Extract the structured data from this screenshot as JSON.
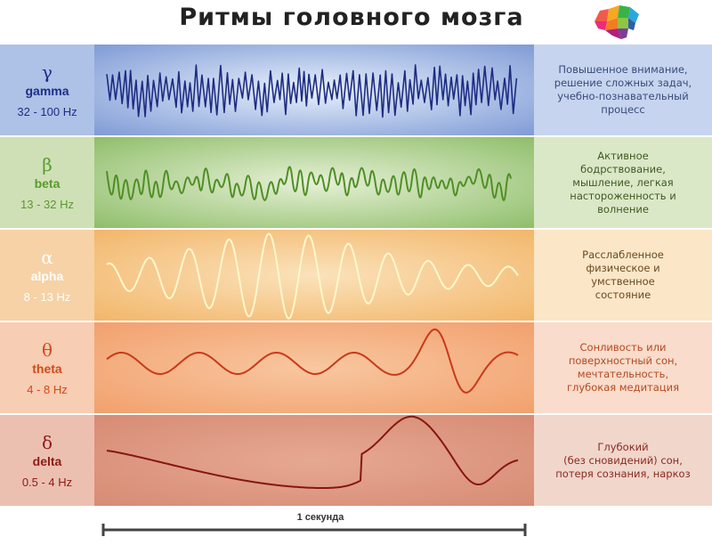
{
  "title": "Ритмы головного мозга",
  "scale_label": "1 секунда",
  "bands": [
    {
      "key": "gamma",
      "symbol": "γ",
      "name": "gamma",
      "freq": "32 - 100 Hz",
      "description": "Повышенное внимание,\nрешение сложных задач,\nучебно-познавательный\nпроцесс",
      "colors": {
        "left": "#aec1e6",
        "center_edge": "#7f9bd6",
        "center_mid": "#e8f0fb",
        "right": "#c6d4ef",
        "text": "#1d2f86",
        "desc": "#3a4a7a",
        "wave": "#1e2c82"
      }
    },
    {
      "key": "beta",
      "symbol": "β",
      "name": "beta",
      "freq": "13 - 32 Hz",
      "description": "Активное\nбодрствование,\nмышление, легкая\nнастороженность и\nволнение",
      "colors": {
        "left": "#cfe0b7",
        "center_edge": "#8fbe6a",
        "center_mid": "#e6f0d6",
        "right": "#dbe8c8",
        "text": "#5a9a2d",
        "desc": "#3f5a22",
        "wave": "#4f8f25"
      }
    },
    {
      "key": "alpha",
      "symbol": "α",
      "name": "alpha",
      "freq": "8 - 13 Hz",
      "description": "Расслабленное\nфизическое и\nумственное\nсостояние",
      "colors": {
        "left": "#f6d2a6",
        "center_edge": "#f2b66a",
        "center_mid": "#fbe2bb",
        "right": "#fbe6c8",
        "text": "#ffffff",
        "desc": "#6a4a1f",
        "wave": "#fff7cc"
      }
    },
    {
      "key": "theta",
      "symbol": "θ",
      "name": "theta",
      "freq": "4 - 8 Hz",
      "description": "Сонливость или\nповерхностный сон,\nмечтательность,\nглубокая медитация",
      "colors": {
        "left": "#f7cdb3",
        "center_edge": "#f2a06d",
        "center_mid": "#f8c7a0",
        "right": "#f9dccb",
        "text": "#d14a1c",
        "desc": "#b44a22",
        "wave": "#c9391a"
      }
    },
    {
      "key": "delta",
      "symbol": "δ",
      "name": "delta",
      "freq": "0.5 - 4 Hz",
      "description": "Глубокий\n(без сновидений) сон,\nпотеря сознания, наркоз",
      "colors": {
        "left": "#ecc0b1",
        "center_edge": "#d78b74",
        "center_mid": "#e6a892",
        "right": "#f1d6cc",
        "text": "#8e1b16",
        "desc": "#8a2a20",
        "wave": "#861612"
      }
    }
  ]
}
